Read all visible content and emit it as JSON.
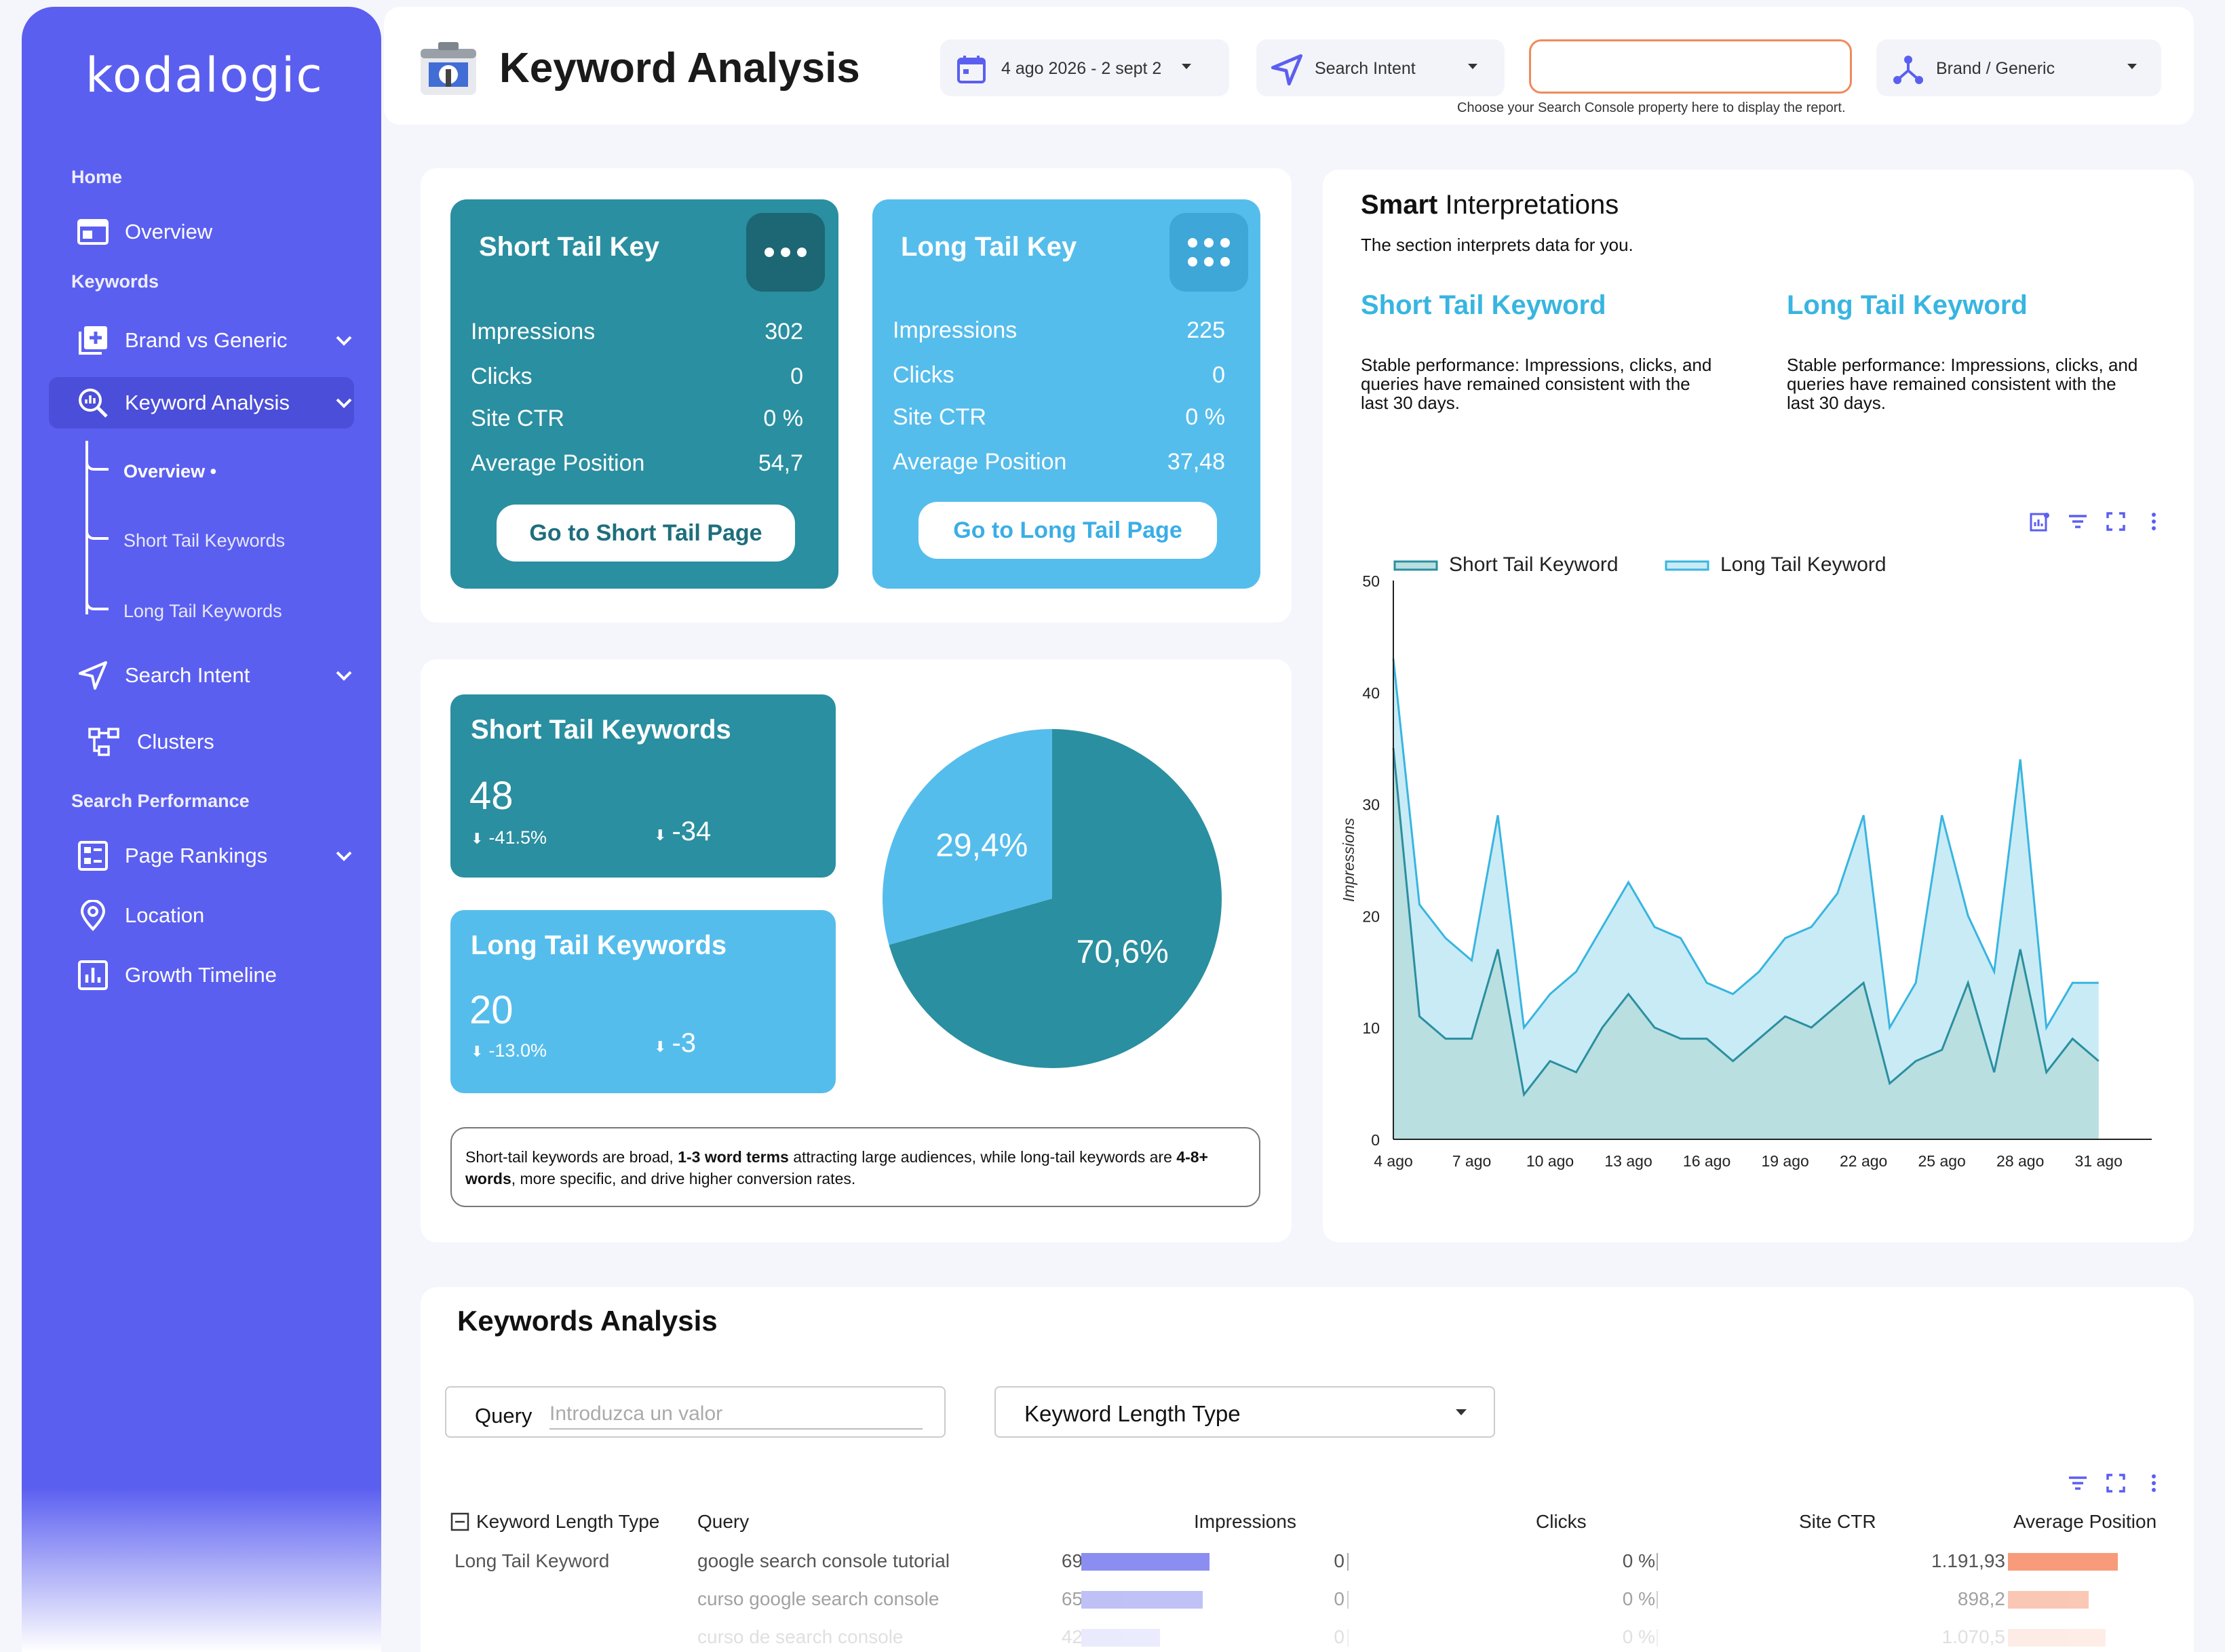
{
  "sidebar": {
    "logo": "kodalogic",
    "sections": {
      "home": "Home",
      "keywords": "Keywords",
      "search_performance": "Search Performance"
    },
    "items": {
      "overview": "Overview",
      "brand_vs_generic": "Brand vs Generic",
      "keyword_analysis": "Keyword Analysis",
      "search_intent": "Search Intent",
      "clusters": "Clusters",
      "page_rankings": "Page Rankings",
      "location": "Location",
      "growth_timeline": "Growth Timeline"
    },
    "subitems": {
      "overview": "Overview •",
      "short_tail": "Short Tail Keywords",
      "long_tail": "Long Tail Keywords"
    }
  },
  "header": {
    "title": "Keyword Analysis",
    "date_range": "4 ago 2026 - 2 sept 2",
    "search_intent": "Search Intent",
    "property_value": "",
    "property_hint": "Choose your Search Console property here to display the report.",
    "brand_generic": "Brand / Generic"
  },
  "kpi": {
    "short": {
      "title": "Short Tail Key",
      "rows": [
        {
          "label": "Impressions",
          "value": "302"
        },
        {
          "label": "Clicks",
          "value": "0"
        },
        {
          "label": "Site CTR",
          "value": "0 %"
        },
        {
          "label": "Average Position",
          "value": "54,7"
        }
      ],
      "button": "Go to Short Tail Page"
    },
    "long": {
      "title": "Long Tail Key",
      "rows": [
        {
          "label": "Impressions",
          "value": "225"
        },
        {
          "label": "Clicks",
          "value": "0"
        },
        {
          "label": "Site CTR",
          "value": "0 %"
        },
        {
          "label": "Average Position",
          "value": "37,48"
        }
      ],
      "button": "Go to Long Tail Page"
    }
  },
  "stats": {
    "short": {
      "title": "Short Tail Keywords",
      "count": "48",
      "pct": "-41.5%",
      "diff": "-34"
    },
    "long": {
      "title": "Long Tail Keywords",
      "count": "20",
      "pct": "-13.0%",
      "diff": "-3"
    }
  },
  "note": {
    "p1": "Short-tail keywords are broad, ",
    "b1": "1-3 word terms",
    "p2": " attracting large audiences, while long-tail keywords are ",
    "b2": "4-8+ words",
    "p3": ", more specific, and drive higher conversion rates."
  },
  "smart": {
    "title_bold": "Smart",
    "title_rest": " Interpretations",
    "subtitle": "The section interprets data for you.",
    "short_head": "Short Tail Keyword",
    "short_body": "Stable performance: Impressions, clicks, and queries have remained consistent with the last 30 days.",
    "long_head": "Long Tail Keyword",
    "long_body": "Stable performance: Impressions, clicks, and queries have remained consistent with the last 30 days."
  },
  "colors": {
    "primary": "#5b5ff0",
    "short": "#2a8fa0",
    "long": "#55bdec",
    "accent": "#38b5e0"
  },
  "chart_data": [
    {
      "type": "pie",
      "slices": [
        {
          "label": "Short Tail Keywords",
          "value": 70.6,
          "display": "70,6%",
          "color": "#2a8fa0"
        },
        {
          "label": "Long Tail Keywords",
          "value": 29.4,
          "display": "29,4%",
          "color": "#55bdec"
        }
      ]
    },
    {
      "type": "area",
      "stacked": true,
      "ylabel": "Impressions",
      "ylim": [
        0,
        50
      ],
      "yticks": [
        0,
        10,
        20,
        30,
        40,
        50
      ],
      "x": [
        4,
        5,
        6,
        7,
        8,
        9,
        10,
        11,
        12,
        13,
        14,
        15,
        16,
        17,
        18,
        19,
        20,
        21,
        22,
        23,
        24,
        25,
        26,
        27,
        28,
        29,
        30,
        31
      ],
      "xtick_labels": [
        "4 ago",
        "7 ago",
        "10 ago",
        "13 ago",
        "16 ago",
        "19 ago",
        "22 ago",
        "25 ago",
        "28 ago",
        "31 ago"
      ],
      "xtick_values": [
        4,
        7,
        10,
        13,
        16,
        19,
        22,
        25,
        28,
        31
      ],
      "legend_position": "top",
      "series": [
        {
          "name": "Short Tail Keyword",
          "color": "#2a8fa0",
          "values": [
            35,
            11,
            9,
            9,
            17,
            4,
            7,
            6,
            10,
            13,
            10,
            9,
            9,
            7,
            9,
            11,
            10,
            12,
            14,
            5,
            7,
            8,
            14,
            6,
            17,
            6,
            9,
            7
          ]
        },
        {
          "name": "Long Tail Keyword",
          "color": "#bfe6f4",
          "values": [
            8,
            10,
            9,
            7,
            12,
            6,
            6,
            9,
            9,
            10,
            9,
            9,
            5,
            6,
            6,
            7,
            9,
            10,
            15,
            5,
            7,
            21,
            6,
            9,
            17,
            4,
            5,
            7
          ]
        }
      ]
    }
  ],
  "table": {
    "title": "Keywords Analysis",
    "query_label": "Query",
    "query_placeholder": "Introduzca un valor",
    "length_select": "Keyword Length Type",
    "headers": [
      "Keyword Length Type",
      "Query",
      "Impressions",
      "Clicks",
      "Site CTR",
      "Average Position"
    ],
    "rows": [
      {
        "type": "Long Tail Keyword",
        "query": "google search console tutorial",
        "impressions": "69",
        "impressions_frac": 0.9,
        "clicks": "0",
        "ctr": "0 %",
        "position": "1.191,93",
        "position_frac": 0.9
      },
      {
        "type": "",
        "query": "curso google search console",
        "impressions": "65",
        "impressions_frac": 0.85,
        "clicks": "0",
        "ctr": "0 %",
        "position": "898,2",
        "position_frac": 0.66
      },
      {
        "type": "",
        "query": "curso de search console",
        "impressions": "42",
        "impressions_frac": 0.55,
        "clicks": "0",
        "ctr": "0 %",
        "position": "1.070,5",
        "position_frac": 0.8
      }
    ]
  }
}
